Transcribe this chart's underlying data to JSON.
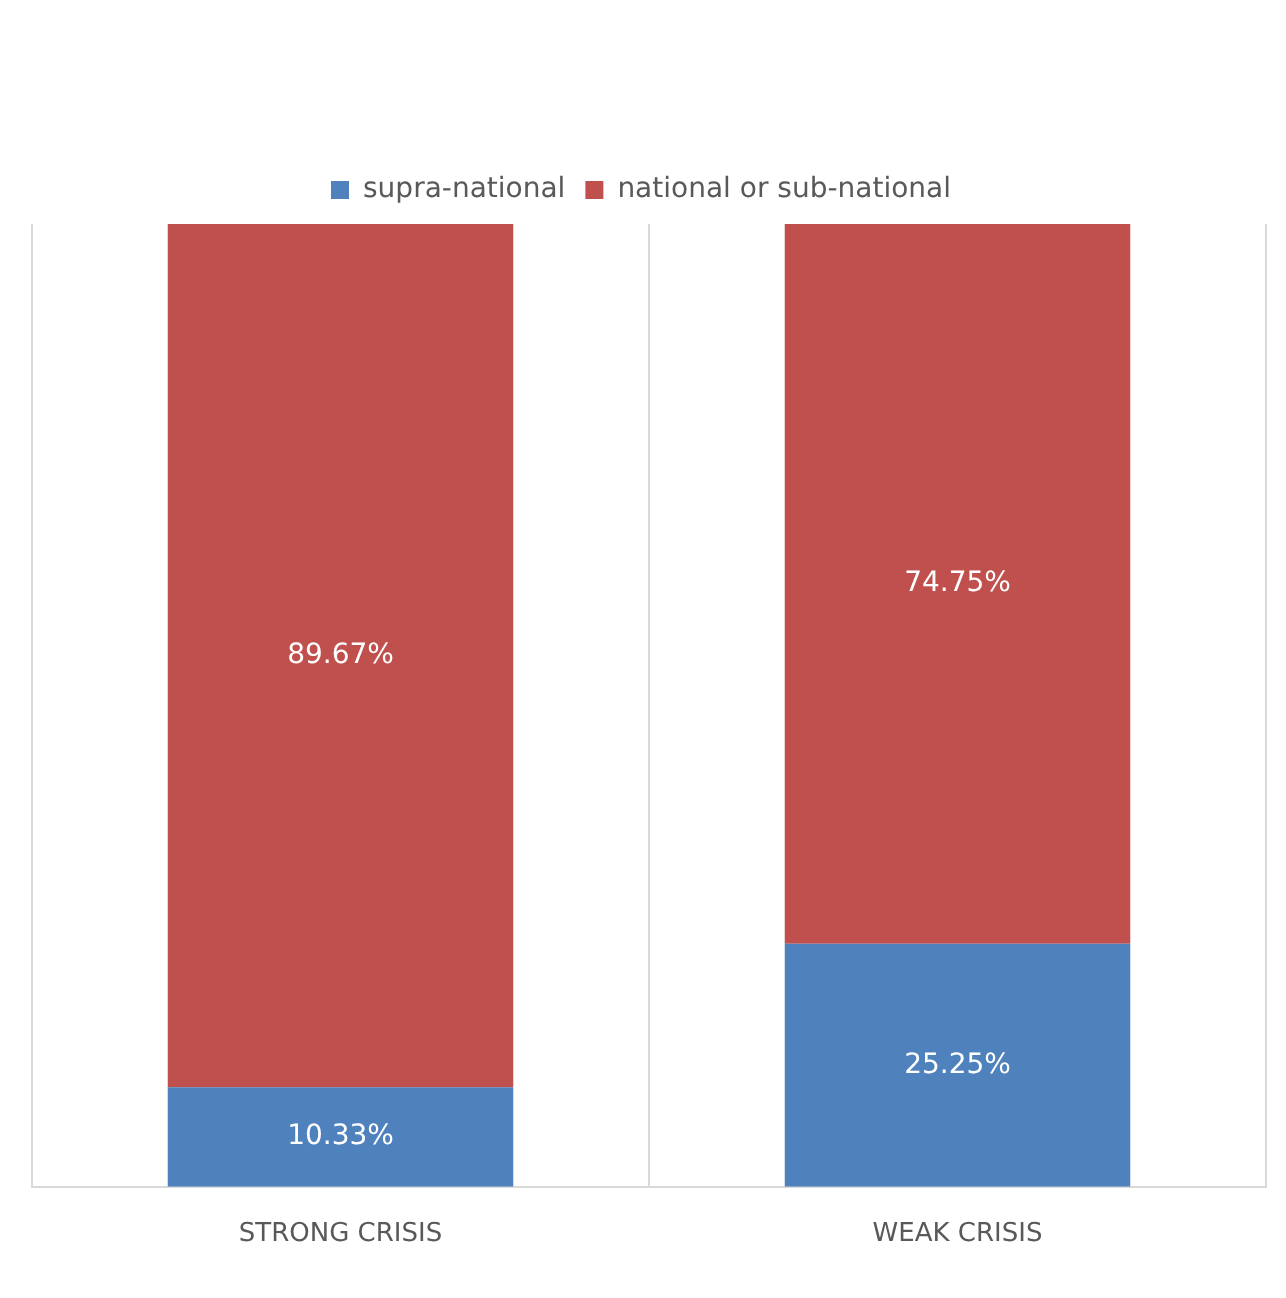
{
  "chart_data": {
    "type": "bar",
    "stacked": true,
    "categories": [
      "STRONG CRISIS",
      "WEAK CRISIS"
    ],
    "series": [
      {
        "name": "supra-national",
        "color": "#4f81bd",
        "values": [
          10.33,
          25.25
        ],
        "value_labels": [
          "10.33%",
          "25.25%"
        ]
      },
      {
        "name": "national or sub-national",
        "color": "#c0504d",
        "values": [
          89.67,
          74.75
        ],
        "value_labels": [
          "89.67%",
          "74.75%"
        ]
      }
    ],
    "relative": false,
    "grid": "x",
    "legend": "top"
  }
}
